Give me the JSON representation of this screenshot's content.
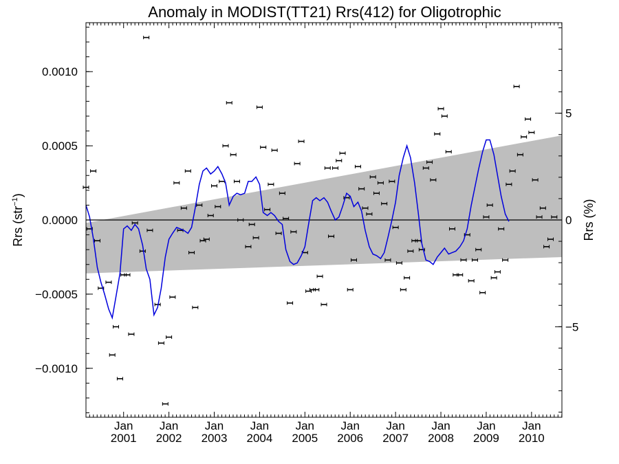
{
  "chart_data": {
    "type": "line",
    "title": "Anomaly in MODIST(TT21) Rrs(412) for Oligotrophic",
    "ylabel_left": {
      "main": "Rrs (str",
      "sup": "−1",
      "close": ")"
    },
    "ylabel_right": "Rrs (%)",
    "xlim": [
      2000.17,
      2010.67
    ],
    "ylim": [
      -0.00133,
      0.00133
    ],
    "ylim_right": [
      -9.24,
      9.24
    ],
    "x_ticks": [
      {
        "x": 2001.0,
        "month": "Jan",
        "year": "2001"
      },
      {
        "x": 2002.0,
        "month": "Jan",
        "year": "2002"
      },
      {
        "x": 2003.0,
        "month": "Jan",
        "year": "2003"
      },
      {
        "x": 2004.0,
        "month": "Jan",
        "year": "2004"
      },
      {
        "x": 2005.0,
        "month": "Jan",
        "year": "2005"
      },
      {
        "x": 2006.0,
        "month": "Jan",
        "year": "2006"
      },
      {
        "x": 2007.0,
        "month": "Jan",
        "year": "2007"
      },
      {
        "x": 2008.0,
        "month": "Jan",
        "year": "2008"
      },
      {
        "x": 2009.0,
        "month": "Jan",
        "year": "2009"
      },
      {
        "x": 2010.0,
        "month": "Jan",
        "year": "2010"
      }
    ],
    "y_ticks_left": [
      {
        "v": 0.001,
        "label": "0.0010"
      },
      {
        "v": 0.0005,
        "label": "0.0005"
      },
      {
        "v": 0.0,
        "label": "0.0000"
      },
      {
        "v": -0.0005,
        "label": "−0.0005"
      },
      {
        "v": -0.001,
        "label": "−0.0010"
      }
    ],
    "y_ticks_right": [
      {
        "v": 5,
        "label": "5"
      },
      {
        "v": 0,
        "label": "0"
      },
      {
        "v": -5,
        "label": "−5"
      }
    ],
    "zero_line": 0.0,
    "uncertainty_band": {
      "color": "#bebebe",
      "upper": [
        [
          2000.17,
          -2e-05
        ],
        [
          2010.67,
          0.00057
        ]
      ],
      "lower": [
        [
          2000.17,
          -0.00036
        ],
        [
          2010.67,
          -0.00025
        ]
      ]
    },
    "series": [
      {
        "type": "scatter-errorbar",
        "color": "#000000",
        "points": [
          [
            2000.17,
            0.00022
          ],
          [
            2000.25,
            -6e-05
          ],
          [
            2000.33,
            0.00033
          ],
          [
            2000.42,
            -0.00014
          ],
          [
            2000.5,
            -0.00046
          ],
          [
            2000.67,
            -0.00042
          ],
          [
            2000.75,
            -0.00091
          ],
          [
            2000.83,
            -0.00072
          ],
          [
            2000.92,
            -0.00107
          ],
          [
            2001.0,
            -0.00037
          ],
          [
            2001.08,
            -0.00037
          ],
          [
            2001.17,
            -0.00077
          ],
          [
            2001.25,
            -2e-05
          ],
          [
            2001.42,
            -0.00021
          ],
          [
            2001.5,
            0.00123
          ],
          [
            2001.58,
            -7e-05
          ],
          [
            2001.75,
            -0.00057
          ],
          [
            2001.83,
            -0.00083
          ],
          [
            2001.92,
            -0.00124
          ],
          [
            2002.0,
            -0.00079
          ],
          [
            2002.08,
            -0.00052
          ],
          [
            2002.17,
            0.00025
          ],
          [
            2002.25,
            -7e-05
          ],
          [
            2002.33,
            8e-05
          ],
          [
            2002.42,
            0.00033
          ],
          [
            2002.5,
            -0.00022
          ],
          [
            2002.58,
            -0.00059
          ],
          [
            2002.67,
            0.0001
          ],
          [
            2002.75,
            -0.00014
          ],
          [
            2002.83,
            -0.00013
          ],
          [
            2002.92,
            3e-05
          ],
          [
            2003.0,
            0.00023
          ],
          [
            2003.08,
            9e-05
          ],
          [
            2003.17,
            0.00026
          ],
          [
            2003.25,
            0.0005
          ],
          [
            2003.33,
            0.00079
          ],
          [
            2003.42,
            0.00044
          ],
          [
            2003.5,
            0.00026
          ],
          [
            2003.58,
            0.0
          ],
          [
            2003.75,
            -0.00018
          ],
          [
            2003.83,
            -3e-05
          ],
          [
            2003.92,
            -0.00012
          ],
          [
            2004.0,
            0.00076
          ],
          [
            2004.08,
            0.00049
          ],
          [
            2004.17,
            7e-05
          ],
          [
            2004.25,
            0.00024
          ],
          [
            2004.33,
            0.00047
          ],
          [
            2004.42,
            -9e-05
          ],
          [
            2004.5,
            0.00018
          ],
          [
            2004.58,
            1e-05
          ],
          [
            2004.67,
            -0.00056
          ],
          [
            2004.75,
            -8e-05
          ],
          [
            2004.83,
            0.00038
          ],
          [
            2004.92,
            0.00053
          ],
          [
            2005.0,
            -0.00022
          ],
          [
            2005.08,
            -0.00048
          ],
          [
            2005.17,
            -0.00047
          ],
          [
            2005.25,
            -0.00047
          ],
          [
            2005.33,
            -0.00038
          ],
          [
            2005.42,
            -0.00057
          ],
          [
            2005.5,
            0.00035
          ],
          [
            2005.58,
            -0.00011
          ],
          [
            2005.67,
            0.00035
          ],
          [
            2005.75,
            0.0004
          ],
          [
            2005.83,
            0.00045
          ],
          [
            2005.92,
            0.00015
          ],
          [
            2006.0,
            -0.00047
          ],
          [
            2006.08,
            -0.00027
          ],
          [
            2006.17,
            0.00036
          ],
          [
            2006.25,
            0.00021
          ],
          [
            2006.33,
            8e-05
          ],
          [
            2006.42,
            4e-05
          ],
          [
            2006.5,
            0.00029
          ],
          [
            2006.58,
            0.00018
          ],
          [
            2006.67,
            0.00025
          ],
          [
            2006.75,
            0.00011
          ],
          [
            2006.83,
            -0.00027
          ],
          [
            2006.92,
            0.00026
          ],
          [
            2007.0,
            -5e-05
          ],
          [
            2007.08,
            -0.00029
          ],
          [
            2007.17,
            -0.00047
          ],
          [
            2007.25,
            -0.00039
          ],
          [
            2007.33,
            -0.00021
          ],
          [
            2007.42,
            -0.00014
          ],
          [
            2007.5,
            -0.00014
          ],
          [
            2007.58,
            -0.0002
          ],
          [
            2007.67,
            0.00035
          ],
          [
            2007.75,
            0.00039
          ],
          [
            2007.83,
            0.00027
          ],
          [
            2007.92,
            0.00058
          ],
          [
            2008.0,
            0.00075
          ],
          [
            2008.08,
            0.0007
          ],
          [
            2008.17,
            0.00046
          ],
          [
            2008.25,
            -6e-05
          ],
          [
            2008.33,
            -0.00037
          ],
          [
            2008.42,
            -0.00037
          ],
          [
            2008.5,
            -0.00027
          ],
          [
            2008.58,
            -0.0001
          ],
          [
            2008.67,
            -0.00041
          ],
          [
            2008.75,
            -0.00027
          ],
          [
            2008.83,
            -0.0002
          ],
          [
            2008.92,
            -0.00049
          ],
          [
            2009.0,
            2e-05
          ],
          [
            2009.08,
            0.0001
          ],
          [
            2009.17,
            -0.00039
          ],
          [
            2009.25,
            -0.00035
          ],
          [
            2009.33,
            -6e-05
          ],
          [
            2009.42,
            -0.00027
          ],
          [
            2009.5,
            0.00024
          ],
          [
            2009.58,
            0.00033
          ],
          [
            2009.67,
            0.0009
          ],
          [
            2009.75,
            0.00044
          ],
          [
            2009.83,
            0.00056
          ],
          [
            2009.92,
            0.00068
          ],
          [
            2010.0,
            0.00059
          ],
          [
            2010.08,
            0.00027
          ],
          [
            2010.17,
            2e-05
          ],
          [
            2010.25,
            8e-05
          ],
          [
            2010.33,
            -0.00018
          ],
          [
            2010.42,
            -0.00013
          ],
          [
            2010.5,
            2e-05
          ]
        ]
      },
      {
        "type": "line",
        "color": "#0000dd",
        "points": [
          [
            2000.17,
            0.0001
          ],
          [
            2000.25,
            2e-05
          ],
          [
            2000.33,
            -0.00012
          ],
          [
            2000.42,
            -0.00032
          ],
          [
            2000.5,
            -0.00042
          ],
          [
            2000.58,
            -0.0005
          ],
          [
            2000.67,
            -0.0006
          ],
          [
            2000.75,
            -0.00066
          ],
          [
            2000.83,
            -0.00052
          ],
          [
            2000.92,
            -0.00036
          ],
          [
            2001.0,
            -6e-05
          ],
          [
            2001.08,
            -4e-05
          ],
          [
            2001.17,
            -7e-05
          ],
          [
            2001.25,
            -3e-05
          ],
          [
            2001.33,
            -6e-05
          ],
          [
            2001.42,
            -0.00017
          ],
          [
            2001.5,
            -0.00033
          ],
          [
            2001.58,
            -0.0004
          ],
          [
            2001.67,
            -0.00064
          ],
          [
            2001.75,
            -0.00059
          ],
          [
            2001.83,
            -0.00046
          ],
          [
            2001.92,
            -0.00025
          ],
          [
            2002.0,
            -0.00013
          ],
          [
            2002.08,
            -9e-05
          ],
          [
            2002.17,
            -5e-05
          ],
          [
            2002.25,
            -6e-05
          ],
          [
            2002.33,
            -7e-05
          ],
          [
            2002.42,
            -9e-05
          ],
          [
            2002.5,
            -5e-05
          ],
          [
            2002.58,
            8e-05
          ],
          [
            2002.67,
            0.00024
          ],
          [
            2002.75,
            0.00033
          ],
          [
            2002.83,
            0.00035
          ],
          [
            2002.92,
            0.00031
          ],
          [
            2003.0,
            0.00033
          ],
          [
            2003.08,
            0.00036
          ],
          [
            2003.17,
            0.00031
          ],
          [
            2003.25,
            0.00025
          ],
          [
            2003.33,
            0.0001
          ],
          [
            2003.42,
            0.00016
          ],
          [
            2003.5,
            0.00018
          ],
          [
            2003.58,
            0.00017
          ],
          [
            2003.67,
            0.00018
          ],
          [
            2003.75,
            0.00026
          ],
          [
            2003.83,
            0.00026
          ],
          [
            2003.92,
            0.00029
          ],
          [
            2004.0,
            0.00024
          ],
          [
            2004.08,
            5e-05
          ],
          [
            2004.17,
            3e-05
          ],
          [
            2004.25,
            5e-05
          ],
          [
            2004.33,
            3e-05
          ],
          [
            2004.42,
            -1e-05
          ],
          [
            2004.5,
            -3e-05
          ],
          [
            2004.58,
            -0.0002
          ],
          [
            2004.67,
            -0.00028
          ],
          [
            2004.75,
            -0.0003
          ],
          [
            2004.83,
            -0.00029
          ],
          [
            2004.92,
            -0.00024
          ],
          [
            2005.0,
            -0.00018
          ],
          [
            2005.08,
            -3e-05
          ],
          [
            2005.17,
            0.00013
          ],
          [
            2005.25,
            0.00015
          ],
          [
            2005.33,
            0.00013
          ],
          [
            2005.42,
            0.00015
          ],
          [
            2005.5,
            0.00012
          ],
          [
            2005.58,
            6e-05
          ],
          [
            2005.67,
            0.0
          ],
          [
            2005.75,
            2e-05
          ],
          [
            2005.83,
            9e-05
          ],
          [
            2005.92,
            0.00018
          ],
          [
            2006.0,
            0.00016
          ],
          [
            2006.08,
            9e-05
          ],
          [
            2006.17,
            0.00012
          ],
          [
            2006.25,
            6e-05
          ],
          [
            2006.33,
            -7e-05
          ],
          [
            2006.42,
            -0.00018
          ],
          [
            2006.5,
            -0.00023
          ],
          [
            2006.58,
            -0.00024
          ],
          [
            2006.67,
            -0.00026
          ],
          [
            2006.75,
            -0.00022
          ],
          [
            2006.83,
            -0.00012
          ],
          [
            2006.92,
            0.0
          ],
          [
            2007.0,
            0.00012
          ],
          [
            2007.08,
            0.0003
          ],
          [
            2007.17,
            0.00042
          ],
          [
            2007.25,
            0.0005
          ],
          [
            2007.33,
            0.00042
          ],
          [
            2007.42,
            0.00025
          ],
          [
            2007.5,
            5e-05
          ],
          [
            2007.58,
            -0.00016
          ],
          [
            2007.67,
            -0.00027
          ],
          [
            2007.75,
            -0.00028
          ],
          [
            2007.83,
            -0.0003
          ],
          [
            2007.92,
            -0.00025
          ],
          [
            2008.0,
            -0.00022
          ],
          [
            2008.08,
            -0.00019
          ],
          [
            2008.17,
            -0.00023
          ],
          [
            2008.25,
            -0.00022
          ],
          [
            2008.33,
            -0.00021
          ],
          [
            2008.42,
            -0.00018
          ],
          [
            2008.5,
            -0.00014
          ],
          [
            2008.58,
            -6e-05
          ],
          [
            2008.67,
            0.0001
          ],
          [
            2008.75,
            0.00022
          ],
          [
            2008.83,
            0.00034
          ],
          [
            2008.92,
            0.00046
          ],
          [
            2009.0,
            0.00054
          ],
          [
            2009.08,
            0.00054
          ],
          [
            2009.17,
            0.00044
          ],
          [
            2009.25,
            0.0003
          ],
          [
            2009.33,
            0.00016
          ],
          [
            2009.42,
            4e-05
          ],
          [
            2009.5,
            -1e-05
          ]
        ]
      }
    ],
    "grid": false
  }
}
